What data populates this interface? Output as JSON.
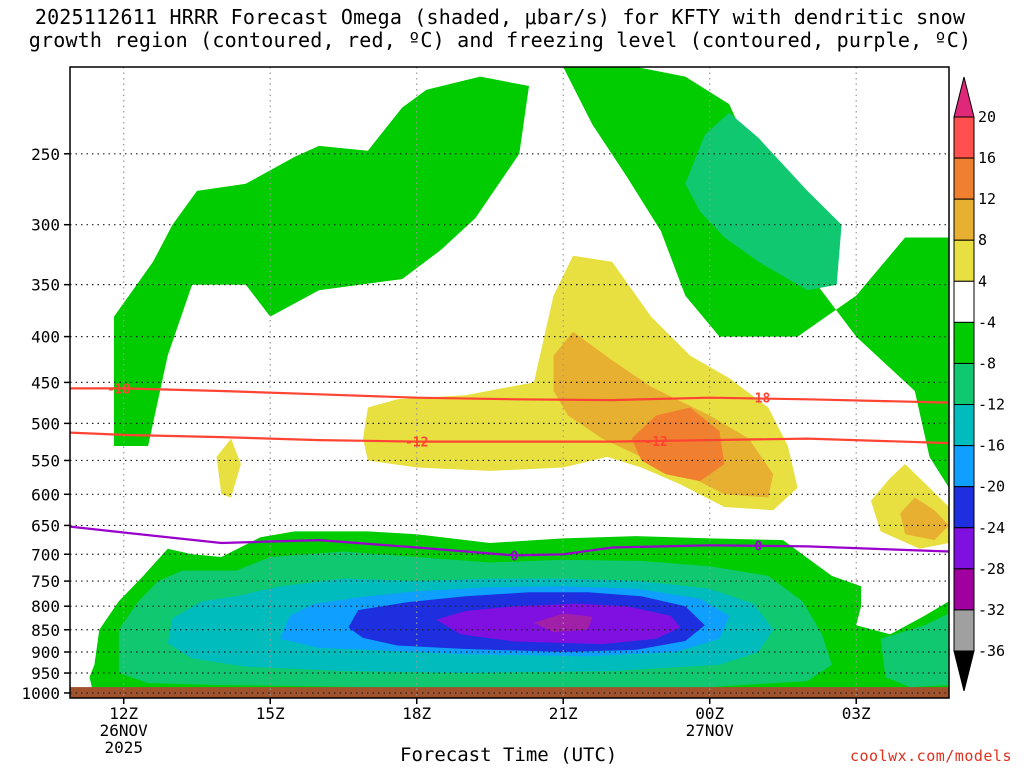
{
  "title": {
    "line1": "2025112611 HRRR Forecast Omega (shaded, μbar/s) for KFTY with dendritic snow",
    "line2": "growth region (contoured, red, ºC) and freezing level (contoured, purple, ºC)"
  },
  "credit": "coolwx.com/models",
  "chart_data": {
    "type": "heatmap",
    "title": "2025112611 HRRR Forecast Omega (shaded, μbar/s) for KFTY with dendritic snow growth region (contoured, red, ºC) and freezing level (contoured, purple, ºC)",
    "xlabel": "Forecast Time (UTC)",
    "ylabel": "",
    "x_ticks": [
      {
        "hour": 12,
        "label": "12Z",
        "sub": [
          "26NOV",
          "2025"
        ]
      },
      {
        "hour": 15,
        "label": "15Z",
        "sub": []
      },
      {
        "hour": 18,
        "label": "18Z",
        "sub": []
      },
      {
        "hour": 21,
        "label": "21Z",
        "sub": []
      },
      {
        "hour": 24,
        "label": "00Z",
        "sub": [
          "27NOV"
        ]
      },
      {
        "hour": 27,
        "label": "03Z",
        "sub": []
      }
    ],
    "xlim": [
      10.9,
      28.9
    ],
    "y_ticks": [
      250,
      300,
      350,
      400,
      450,
      500,
      550,
      600,
      650,
      700,
      750,
      800,
      850,
      900,
      950,
      1000
    ],
    "ylim": [
      200,
      1013
    ],
    "y_scale": "log-pressure",
    "grid": true,
    "colorbar": {
      "labels": [
        "20",
        "16",
        "12",
        "8",
        "4",
        "-4",
        "-8",
        "-12",
        "-16",
        "-20",
        "-24",
        "-28",
        "-32",
        "-36"
      ],
      "colors": [
        "#ff4f4f",
        "#f08030",
        "#e8b030",
        "#e8e040",
        "#ffffff",
        "#00cc00",
        "#10c870",
        "#00bcbc",
        "#0f9fff",
        "#1e2fdf",
        "#8010e0",
        "#a000a0",
        "#a0a0a0"
      ],
      "extend_top_color": "#e0287a",
      "extend_bottom_color": "#000000"
    },
    "contours": {
      "temperature_red": [
        {
          "label": "-18",
          "points": [
            [
              10.9,
              457
            ],
            [
              12,
              457
            ],
            [
              14,
              460
            ],
            [
              16,
              464
            ],
            [
              18,
              468
            ],
            [
              20,
              470
            ],
            [
              22,
              471
            ],
            [
              24,
              468
            ],
            [
              26,
              470
            ],
            [
              28.9,
              474
            ]
          ]
        },
        {
          "label": "-12",
          "points": [
            [
              10.9,
              512
            ],
            [
              12,
              515
            ],
            [
              14,
              518
            ],
            [
              16,
              522
            ],
            [
              18,
              524
            ],
            [
              20,
              524
            ],
            [
              22,
              524
            ],
            [
              24,
              522
            ],
            [
              26,
              520
            ],
            [
              28.9,
              526
            ]
          ]
        }
      ],
      "freezing_level_purple": {
        "label": "0",
        "points": [
          [
            10.9,
            652
          ],
          [
            12,
            662
          ],
          [
            14,
            680
          ],
          [
            16,
            675
          ],
          [
            18,
            688
          ],
          [
            20,
            702
          ],
          [
            21,
            700
          ],
          [
            22,
            688
          ],
          [
            24,
            684
          ],
          [
            26,
            686
          ],
          [
            28.9,
            695
          ]
        ]
      }
    },
    "omega_regions": [
      {
        "category": "-8 to -4",
        "desc": "green upper band 250-420 hPa 12Z-20Z"
      },
      {
        "category": "-8 to -4",
        "desc": "green upper band 200-500 hPa 21Z-05Z"
      },
      {
        "category": "-12 to -8",
        "desc": "teal 240-330 hPa 23Z-02Z"
      },
      {
        "category": "4 to 8",
        "desc": "yellow plume 320-620 hPa 17Z-01Z"
      },
      {
        "category": "8 to 12",
        "desc": "gold 420-600 hPa 21Z-01Z"
      },
      {
        "category": "12 to 16",
        "desc": "orange 480-590 hPa 23Z"
      },
      {
        "category": "-8 to -4",
        "desc": "low-level green 650-1000 hPa 11Z-05Z"
      },
      {
        "category": "-12 to -8",
        "desc": "teal 700-980 hPa"
      },
      {
        "category": "-16 to -12",
        "desc": "cyan 760-940 hPa"
      },
      {
        "category": "-20 to -16",
        "desc": "blue 780-890 hPa 16Z-24Z"
      },
      {
        "category": "-24 to -20",
        "desc": "dark blue 790-880 hPa 18Z-24Z"
      },
      {
        "category": "-28 to -24",
        "desc": "purple 820-850 hPa 21Z"
      }
    ]
  }
}
